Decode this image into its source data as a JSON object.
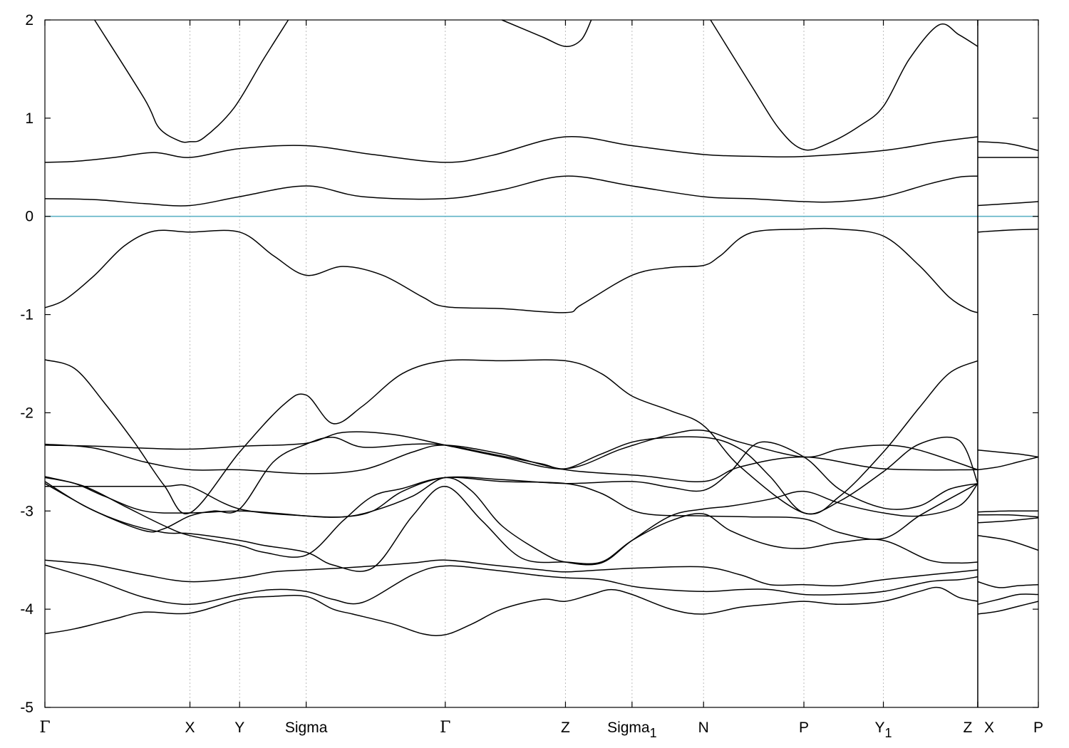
{
  "chart_data": {
    "type": "line",
    "title": "",
    "xlabel": "",
    "ylabel": "",
    "ylim": [
      -5,
      2
    ],
    "y_ticks": [
      2,
      1,
      0,
      -1,
      -2,
      -3,
      -4,
      -5
    ],
    "y_tick_labels": [
      "2",
      "1",
      "0",
      "-1",
      "-2",
      "-3",
      "-4",
      "-5"
    ],
    "xlim": [
      0,
      10
    ],
    "kpoints": [
      {
        "label": "Γ",
        "sub": "",
        "greek": true,
        "x": 0
      },
      {
        "label": "X",
        "sub": "",
        "greek": false,
        "x": 1.46
      },
      {
        "label": "Y",
        "sub": "",
        "greek": false,
        "x": 1.96
      },
      {
        "label": "Sigma",
        "sub": "",
        "greek": false,
        "x": 2.63
      },
      {
        "label": "Γ",
        "sub": "",
        "greek": true,
        "x": 4.03
      },
      {
        "label": "Z",
        "sub": "",
        "greek": false,
        "x": 5.24
      },
      {
        "label": "Sigma",
        "sub": "1",
        "greek": false,
        "x": 5.91
      },
      {
        "label": "N",
        "sub": "",
        "greek": false,
        "x": 6.63
      },
      {
        "label": "P",
        "sub": "",
        "greek": false,
        "x": 7.64
      },
      {
        "label": "Y",
        "sub": "1",
        "greek": false,
        "x": 8.44
      },
      {
        "label": "Z",
        "sub": "",
        "greek": false,
        "x": 9.39
      },
      {
        "label": "X",
        "sub": "",
        "greek": false,
        "x": 9.39
      },
      {
        "label": "P",
        "sub": "",
        "greek": false,
        "x": 10
      }
    ],
    "vertical_lines_x": [
      1.46,
      1.96,
      2.63,
      4.03,
      5.24,
      5.91,
      6.63,
      7.64,
      8.44
    ],
    "segment_break_x": 9.39,
    "fermi_level": 0,
    "colors": {
      "bands": "#000000",
      "fermi": "#5fb3c6",
      "gridlines": "#bdbdbd"
    },
    "grid": false,
    "series": [
      {
        "x": [
          0.5,
          1.0,
          1.15,
          1.35,
          1.46,
          1.6,
          1.9,
          2.2,
          2.45
        ],
        "y": [
          2.0,
          1.2,
          0.9,
          0.77,
          0.76,
          0.8,
          1.1,
          1.6,
          2.0
        ]
      },
      {
        "x": [
          4.6,
          5.0,
          5.24,
          5.4,
          5.5
        ],
        "y": [
          2.0,
          1.83,
          1.73,
          1.8,
          2.0
        ]
      },
      {
        "x": [
          6.7,
          7.1,
          7.4,
          7.64,
          7.9,
          8.2,
          8.44,
          8.7,
          9.0,
          9.2,
          9.39
        ],
        "y": [
          2.0,
          1.35,
          0.88,
          0.68,
          0.75,
          0.92,
          1.12,
          1.6,
          1.95,
          1.85,
          1.73
        ]
      },
      {
        "x": [
          0,
          0.3,
          0.7,
          1.1,
          1.46,
          1.96,
          2.63,
          3.3,
          4.03,
          4.5,
          5.24,
          5.91,
          6.63,
          7.2,
          7.64,
          8.44,
          9.0,
          9.39
        ],
        "y": [
          0.55,
          0.56,
          0.6,
          0.65,
          0.6,
          0.69,
          0.72,
          0.63,
          0.55,
          0.62,
          0.81,
          0.72,
          0.63,
          0.61,
          0.61,
          0.67,
          0.76,
          0.81
        ]
      },
      {
        "x": [
          0,
          0.5,
          1.0,
          1.46,
          1.96,
          2.63,
          3.2,
          4.03,
          4.6,
          5.24,
          5.91,
          6.63,
          7.1,
          7.64,
          8.0,
          8.44,
          8.9,
          9.2,
          9.39
        ],
        "y": [
          0.18,
          0.17,
          0.13,
          0.11,
          0.2,
          0.31,
          0.2,
          0.18,
          0.27,
          0.41,
          0.31,
          0.2,
          0.18,
          0.15,
          0.15,
          0.2,
          0.33,
          0.4,
          0.41
        ]
      },
      {
        "x": [
          0,
          0.2,
          0.5,
          0.8,
          1.1,
          1.46,
          1.96,
          2.3,
          2.63,
          3.0,
          3.4,
          3.8,
          4.03,
          4.6,
          5.24,
          5.4,
          5.91,
          6.3,
          6.63,
          6.8,
          7.1,
          7.64,
          8.0,
          8.44,
          8.8,
          9.1,
          9.3,
          9.39
        ],
        "y": [
          -0.93,
          -0.85,
          -0.6,
          -0.3,
          -0.15,
          -0.16,
          -0.16,
          -0.4,
          -0.6,
          -0.51,
          -0.6,
          -0.82,
          -0.92,
          -0.94,
          -0.98,
          -0.9,
          -0.6,
          -0.52,
          -0.5,
          -0.4,
          -0.17,
          -0.13,
          -0.13,
          -0.2,
          -0.5,
          -0.82,
          -0.95,
          -0.98
        ]
      },
      {
        "x": [
          0,
          0.3,
          0.6,
          0.9,
          1.2,
          1.46,
          1.96,
          2.4,
          2.63,
          2.9,
          3.2,
          3.6,
          4.03,
          4.6,
          5.24,
          5.6,
          5.91,
          6.3,
          6.63,
          7.0,
          7.64,
          8.0,
          8.44,
          8.8,
          9.1,
          9.39
        ],
        "y": [
          -1.46,
          -1.55,
          -1.9,
          -2.3,
          -2.74,
          -3.02,
          -2.4,
          -1.92,
          -1.82,
          -2.11,
          -1.93,
          -1.6,
          -1.47,
          -1.47,
          -1.47,
          -1.6,
          -1.83,
          -1.98,
          -2.13,
          -2.55,
          -3.02,
          -2.85,
          -2.4,
          -1.95,
          -1.6,
          -1.47
        ]
      },
      {
        "x": [
          0,
          0.5,
          1.0,
          1.46,
          2.0,
          2.63,
          3.0,
          3.5,
          4.03,
          4.6,
          5.24,
          5.8,
          6.3,
          6.63,
          7.0,
          7.64,
          8.0,
          8.44,
          8.8,
          9.39
        ],
        "y": [
          -2.33,
          -2.34,
          -2.36,
          -2.37,
          -2.34,
          -2.31,
          -2.2,
          -2.22,
          -2.33,
          -2.45,
          -2.57,
          -2.37,
          -2.22,
          -2.18,
          -2.3,
          -2.45,
          -2.37,
          -2.33,
          -2.38,
          -2.58
        ]
      },
      {
        "x": [
          0,
          0.5,
          1.0,
          1.46,
          1.96,
          2.63,
          3.2,
          3.7,
          4.03,
          4.6,
          5.24,
          6.0,
          6.63,
          7.0,
          7.64,
          8.44,
          9.39
        ],
        "y": [
          -2.32,
          -2.36,
          -2.5,
          -2.58,
          -2.58,
          -2.62,
          -2.58,
          -2.4,
          -2.33,
          -2.42,
          -2.58,
          -2.64,
          -2.7,
          -2.55,
          -2.45,
          -2.57,
          -2.58
        ]
      },
      {
        "x": [
          0,
          0.6,
          1.2,
          1.46,
          1.96,
          2.63,
          3.0,
          3.3,
          3.6,
          4.03,
          4.6,
          5.24,
          5.91,
          6.3,
          6.63,
          6.9,
          7.2,
          7.64,
          8.0,
          8.44,
          8.8,
          9.1,
          9.39
        ],
        "y": [
          -2.75,
          -2.75,
          -2.75,
          -2.75,
          -2.98,
          -3.05,
          -3.06,
          -3.0,
          -2.8,
          -2.66,
          -2.68,
          -2.72,
          -2.7,
          -2.76,
          -2.79,
          -2.6,
          -2.3,
          -2.45,
          -2.78,
          -2.97,
          -2.95,
          -2.78,
          -2.72
        ]
      },
      {
        "x": [
          0,
          0.4,
          0.8,
          1.2,
          1.46,
          1.96,
          2.2,
          2.63,
          3.0,
          3.3,
          3.6,
          4.03,
          4.6,
          5.24,
          5.6,
          6.0,
          6.63,
          7.1,
          7.64,
          8.0,
          8.44,
          8.8,
          9.1,
          9.39
        ],
        "y": [
          -2.65,
          -2.75,
          -2.95,
          -3.15,
          -3.25,
          -3.35,
          -3.42,
          -3.45,
          -3.1,
          -2.85,
          -2.77,
          -2.66,
          -2.7,
          -2.72,
          -2.82,
          -3.02,
          -3.05,
          -3.06,
          -3.08,
          -3.22,
          -3.28,
          -3.05,
          -2.88,
          -2.72
        ]
      },
      {
        "x": [
          0,
          0.3,
          0.6,
          1.0,
          1.46,
          1.96,
          2.4,
          2.63,
          3.0,
          3.3,
          3.7,
          4.03,
          4.3,
          4.6,
          5.0,
          5.24,
          5.6,
          5.91,
          6.3,
          6.63,
          6.9,
          7.3,
          7.64,
          8.0,
          8.44,
          8.8,
          9.2,
          9.39
        ],
        "y": [
          -2.66,
          -2.72,
          -2.85,
          -3.0,
          -3.02,
          -3.0,
          -3.03,
          -3.05,
          -3.06,
          -3.0,
          -2.85,
          -2.66,
          -2.8,
          -3.15,
          -3.42,
          -3.52,
          -3.53,
          -3.3,
          -3.05,
          -2.98,
          -2.95,
          -2.88,
          -2.8,
          -2.92,
          -3.02,
          -3.05,
          -2.95,
          -2.72
        ]
      },
      {
        "x": [
          0,
          0.4,
          0.8,
          1.2,
          1.46,
          1.96,
          2.2,
          2.63,
          2.9,
          3.3,
          3.7,
          4.03,
          4.4,
          4.8,
          5.24,
          5.6,
          5.91,
          6.3,
          6.63,
          6.9,
          7.3,
          7.64,
          8.0,
          8.44,
          8.9,
          9.2,
          9.39
        ],
        "y": [
          -2.7,
          -2.95,
          -3.12,
          -3.22,
          -3.23,
          -3.3,
          -3.35,
          -3.42,
          -3.55,
          -3.58,
          -3.05,
          -2.75,
          -3.1,
          -3.48,
          -3.52,
          -3.52,
          -3.3,
          -3.1,
          -3.03,
          -3.2,
          -3.35,
          -3.38,
          -3.32,
          -3.3,
          -3.5,
          -3.53,
          -3.52
        ]
      },
      {
        "x": [
          0,
          0.5,
          1.0,
          1.2,
          1.46,
          1.7,
          1.96,
          2.3,
          2.63,
          2.9,
          3.2,
          3.7,
          4.03,
          4.5,
          5.0,
          5.24,
          5.6,
          6.0,
          6.63,
          7.0,
          7.3,
          7.64,
          8.0,
          8.44,
          8.8,
          9.2,
          9.39
        ],
        "y": [
          -2.72,
          -3.0,
          -3.2,
          -3.18,
          -3.05,
          -3.0,
          -2.98,
          -2.5,
          -2.32,
          -2.25,
          -2.35,
          -2.32,
          -2.33,
          -2.42,
          -2.52,
          -2.57,
          -2.42,
          -2.28,
          -2.25,
          -2.37,
          -2.65,
          -3.02,
          -2.9,
          -2.6,
          -2.32,
          -2.28,
          -2.72
        ]
      },
      {
        "x": [
          0,
          0.5,
          1.0,
          1.46,
          1.96,
          2.3,
          2.63,
          3.0,
          3.3,
          3.7,
          4.03,
          4.5,
          5.0,
          5.24,
          5.6,
          6.0,
          6.63,
          7.0,
          7.3,
          7.64,
          8.0,
          8.44,
          8.9,
          9.2,
          9.39
        ],
        "y": [
          -3.5,
          -3.55,
          -3.65,
          -3.72,
          -3.68,
          -3.62,
          -3.6,
          -3.58,
          -3.56,
          -3.53,
          -3.5,
          -3.55,
          -3.6,
          -3.62,
          -3.6,
          -3.58,
          -3.57,
          -3.65,
          -3.75,
          -3.75,
          -3.76,
          -3.7,
          -3.65,
          -3.62,
          -3.6
        ]
      },
      {
        "x": [
          0,
          0.5,
          1.0,
          1.46,
          1.96,
          2.3,
          2.63,
          2.9,
          3.2,
          3.7,
          4.03,
          4.5,
          5.0,
          5.24,
          5.6,
          6.0,
          6.63,
          7.0,
          7.3,
          7.64,
          8.0,
          8.44,
          8.9,
          9.2,
          9.39
        ],
        "y": [
          -3.55,
          -3.7,
          -3.88,
          -3.95,
          -3.85,
          -3.8,
          -3.82,
          -3.9,
          -3.93,
          -3.65,
          -3.56,
          -3.6,
          -3.66,
          -3.68,
          -3.7,
          -3.78,
          -3.82,
          -3.8,
          -3.8,
          -3.85,
          -3.85,
          -3.82,
          -3.72,
          -3.7,
          -3.67
        ]
      },
      {
        "x": [
          0,
          0.3,
          0.7,
          1.0,
          1.46,
          1.96,
          2.3,
          2.63,
          2.9,
          3.1,
          3.5,
          3.8,
          4.03,
          4.3,
          4.6,
          5.0,
          5.24,
          5.5,
          5.7,
          5.91,
          6.3,
          6.63,
          7.0,
          7.3,
          7.64,
          8.0,
          8.44,
          8.8,
          9.0,
          9.2,
          9.39
        ],
        "y": [
          -4.25,
          -4.2,
          -4.1,
          -4.03,
          -4.04,
          -3.9,
          -3.87,
          -3.87,
          -4.0,
          -4.05,
          -4.15,
          -4.25,
          -4.26,
          -4.15,
          -4.0,
          -3.9,
          -3.92,
          -3.85,
          -3.8,
          -3.85,
          -4.0,
          -4.05,
          -3.98,
          -3.95,
          -3.92,
          -3.95,
          -3.92,
          -3.82,
          -3.78,
          -3.88,
          -3.92
        ]
      },
      {
        "x": [
          9.39,
          9.7,
          10
        ],
        "y": [
          0.76,
          0.74,
          0.67
        ]
      },
      {
        "x": [
          9.39,
          9.7,
          10
        ],
        "y": [
          0.6,
          0.6,
          0.6
        ]
      },
      {
        "x": [
          9.39,
          9.7,
          10
        ],
        "y": [
          0.11,
          0.13,
          0.15
        ]
      },
      {
        "x": [
          9.39,
          9.7,
          10
        ],
        "y": [
          -0.16,
          -0.14,
          -0.13
        ]
      },
      {
        "x": [
          9.39,
          9.6,
          9.8,
          10
        ],
        "y": [
          -2.38,
          -2.4,
          -2.42,
          -2.45
        ]
      },
      {
        "x": [
          9.39,
          9.6,
          9.8,
          10
        ],
        "y": [
          -2.58,
          -2.55,
          -2.5,
          -2.45
        ]
      },
      {
        "x": [
          9.39,
          9.7,
          10
        ],
        "y": [
          -3.01,
          -3.0,
          -3.0
        ]
      },
      {
        "x": [
          9.39,
          9.7,
          10
        ],
        "y": [
          -3.04,
          -3.04,
          -3.06
        ]
      },
      {
        "x": [
          9.39,
          9.7,
          10
        ],
        "y": [
          -3.12,
          -3.1,
          -3.07
        ]
      },
      {
        "x": [
          9.39,
          9.7,
          10
        ],
        "y": [
          -3.25,
          -3.3,
          -3.4
        ]
      },
      {
        "x": [
          9.39,
          9.6,
          9.8,
          10
        ],
        "y": [
          -3.72,
          -3.78,
          -3.76,
          -3.75
        ]
      },
      {
        "x": [
          9.39,
          9.6,
          9.8,
          10
        ],
        "y": [
          -3.95,
          -3.9,
          -3.85,
          -3.85
        ]
      },
      {
        "x": [
          9.39,
          9.6,
          9.8,
          10
        ],
        "y": [
          -4.05,
          -4.02,
          -3.97,
          -3.92
        ]
      }
    ]
  }
}
